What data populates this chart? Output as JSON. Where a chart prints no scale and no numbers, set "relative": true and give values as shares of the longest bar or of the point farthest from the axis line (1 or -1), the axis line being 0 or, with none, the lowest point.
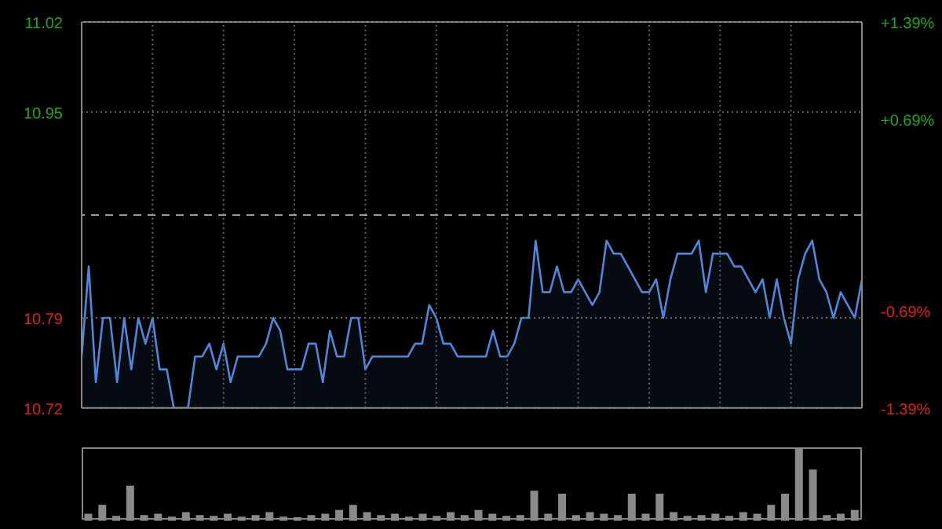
{
  "chart_data": [
    {
      "type": "area",
      "color": "#4f87dc",
      "marker": "none",
      "grid": true,
      "tick_labels": "y",
      "categories": [
        null,
        null,
        null,
        null,
        null,
        null,
        null,
        null,
        null,
        null,
        null,
        null,
        null,
        null,
        null,
        null,
        null,
        null,
        null,
        null,
        null,
        null,
        null,
        null,
        null,
        null,
        null,
        null,
        null,
        null,
        null,
        null,
        null,
        null,
        null,
        null,
        null,
        null,
        null,
        null,
        null,
        null,
        null,
        null,
        null,
        null,
        null,
        null,
        null,
        null,
        null,
        null,
        null,
        null,
        null,
        null,
        null,
        null,
        null,
        null,
        null,
        null,
        null,
        null,
        null,
        null,
        null,
        null,
        null,
        null,
        null,
        null,
        null,
        null,
        null,
        null,
        null,
        null,
        null,
        null,
        null,
        null,
        null,
        null,
        null,
        null,
        null,
        null,
        null,
        null,
        null,
        null,
        null,
        null,
        null,
        null,
        null,
        null,
        null,
        null,
        null,
        null,
        null,
        null,
        null,
        null,
        null,
        null,
        null,
        null,
        null
      ],
      "values": [
        10.76,
        10.83,
        10.74,
        10.79,
        10.79,
        10.74,
        10.79,
        10.75,
        10.79,
        10.77,
        10.79,
        10.75,
        10.75,
        10.72,
        10.72,
        10.72,
        10.76,
        10.76,
        10.77,
        10.75,
        10.77,
        10.74,
        10.76,
        10.76,
        10.76,
        10.76,
        10.77,
        10.79,
        10.78,
        10.75,
        10.75,
        10.75,
        10.77,
        10.77,
        10.74,
        10.78,
        10.76,
        10.76,
        10.79,
        10.79,
        10.75,
        10.76,
        10.76,
        10.76,
        10.76,
        10.76,
        10.76,
        10.77,
        10.77,
        10.8,
        10.79,
        10.77,
        10.77,
        10.76,
        10.76,
        10.76,
        10.76,
        10.76,
        10.78,
        10.76,
        10.76,
        10.77,
        10.79,
        10.79,
        10.85,
        10.81,
        10.81,
        10.83,
        10.81,
        10.81,
        10.82,
        10.81,
        10.8,
        10.81,
        10.85,
        10.84,
        10.84,
        10.83,
        10.82,
        10.81,
        10.81,
        10.82,
        10.79,
        10.82,
        10.84,
        10.84,
        10.84,
        10.85,
        10.81,
        10.84,
        10.84,
        10.84,
        10.83,
        10.83,
        10.82,
        10.81,
        10.82,
        10.79,
        10.82,
        10.79,
        10.77,
        10.82,
        10.84,
        10.85,
        10.82,
        10.81,
        10.79,
        10.81,
        10.8,
        10.79,
        10.82
      ],
      "ylim": [
        10.72,
        11.02
      ],
      "yticks": [
        10.72,
        10.79,
        10.95,
        11.02
      ],
      "y2lim": [
        -1.39,
        1.39
      ],
      "y2ticks": [
        {
          "value": 1.39,
          "label": "+1.39%"
        },
        {
          "value": 0.69,
          "label": "+0.69%"
        },
        {
          "value": -0.69,
          "label": "-0.69%"
        },
        {
          "value": -1.39,
          "label": "-1.39%"
        }
      ],
      "ref_lines": [
        {
          "axis": "y2",
          "value": 0,
          "line_style": "dashed"
        }
      ]
    },
    {
      "type": "bar",
      "relative": true,
      "tick_labels": false,
      "color": "#8a8a8a",
      "categories": [
        null,
        null,
        null,
        null,
        null,
        null,
        null,
        null,
        null,
        null,
        null,
        null,
        null,
        null,
        null,
        null,
        null,
        null,
        null,
        null,
        null,
        null,
        null,
        null,
        null,
        null,
        null,
        null,
        null,
        null,
        null,
        null,
        null,
        null,
        null,
        null,
        null,
        null,
        null,
        null,
        null,
        null,
        null,
        null,
        null,
        null,
        null,
        null,
        null,
        null,
        null,
        null,
        null,
        null,
        null,
        null
      ],
      "values": [
        0.1,
        0.22,
        0.07,
        0.48,
        0.08,
        0.1,
        0.06,
        0.12,
        0.08,
        0.07,
        0.1,
        0.06,
        0.08,
        0.12,
        0.06,
        0.05,
        0.08,
        0.1,
        0.15,
        0.22,
        0.12,
        0.08,
        0.1,
        0.06,
        0.1,
        0.07,
        0.12,
        0.08,
        0.15,
        0.1,
        0.07,
        0.08,
        0.41,
        0.1,
        0.37,
        0.08,
        0.12,
        0.1,
        0.08,
        0.37,
        0.1,
        0.37,
        0.12,
        0.07,
        0.08,
        0.1,
        0.07,
        0.12,
        0.1,
        0.22,
        0.37,
        1,
        0.7,
        0.08,
        0.1,
        0.15
      ]
    }
  ]
}
